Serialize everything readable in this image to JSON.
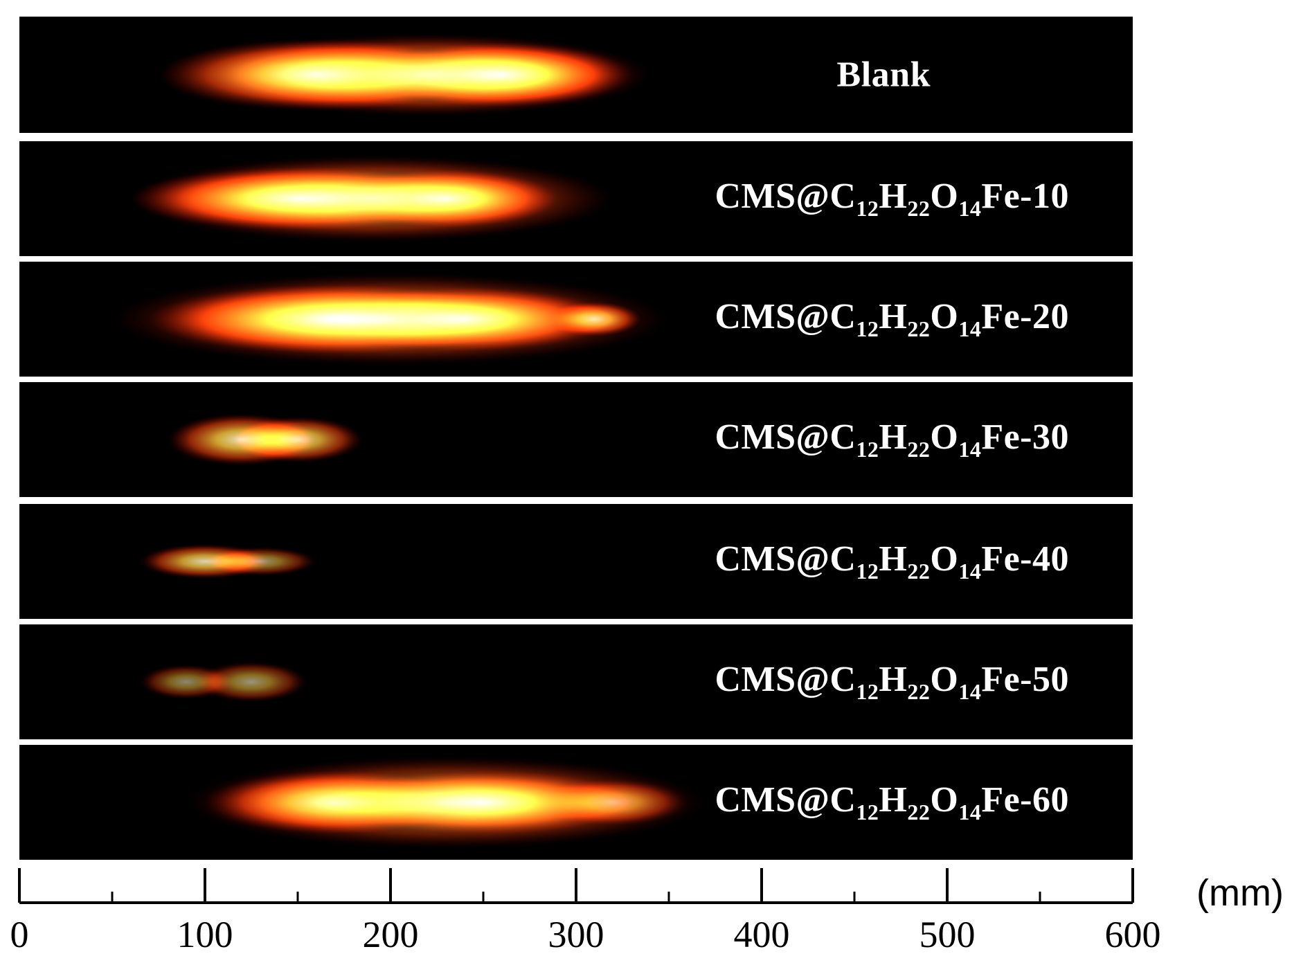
{
  "strips": [
    {
      "label": "Blank",
      "sub": null,
      "flames": [
        {
          "mm": 160,
          "spread": 85,
          "intensity": 1.0,
          "height": 0.62
        },
        {
          "mm": 260,
          "spread": 70,
          "intensity": 1.0,
          "height": 0.55
        },
        {
          "mm": 220,
          "spread": 120,
          "intensity": 0.8,
          "height": 0.7
        }
      ]
    },
    {
      "label": "CMS@C",
      "sub": [
        "12",
        "22",
        "14"
      ],
      "suffix": "Fe-10",
      "flames": [
        {
          "mm": 150,
          "spread": 90,
          "intensity": 0.95,
          "height": 0.55
        },
        {
          "mm": 230,
          "spread": 60,
          "intensity": 0.9,
          "height": 0.5
        },
        {
          "mm": 190,
          "spread": 130,
          "intensity": 0.7,
          "height": 0.75
        }
      ]
    },
    {
      "label": "CMS@C",
      "sub": [
        "12",
        "22",
        "14"
      ],
      "suffix": "Fe-20",
      "flames": [
        {
          "mm": 170,
          "spread": 100,
          "intensity": 1.0,
          "height": 0.6
        },
        {
          "mm": 240,
          "spread": 80,
          "intensity": 0.9,
          "height": 0.55
        },
        {
          "mm": 310,
          "spread": 25,
          "intensity": 0.85,
          "height": 0.3
        },
        {
          "mm": 200,
          "spread": 150,
          "intensity": 0.6,
          "height": 0.8
        }
      ]
    },
    {
      "label": "CMS@C",
      "sub": [
        "12",
        "22",
        "14"
      ],
      "suffix": "Fe-30",
      "flames": [
        {
          "mm": 120,
          "spread": 40,
          "intensity": 0.9,
          "height": 0.45
        },
        {
          "mm": 150,
          "spread": 35,
          "intensity": 0.85,
          "height": 0.4
        }
      ]
    },
    {
      "label": "CMS@C",
      "sub": [
        "12",
        "22",
        "14"
      ],
      "suffix": "Fe-40",
      "flames": [
        {
          "mm": 100,
          "spread": 35,
          "intensity": 0.85,
          "height": 0.3
        },
        {
          "mm": 130,
          "spread": 30,
          "intensity": 0.6,
          "height": 0.25
        }
      ]
    },
    {
      "label": "CMS@C",
      "sub": [
        "12",
        "22",
        "14"
      ],
      "suffix": "Fe-50",
      "flames": [
        {
          "mm": 90,
          "spread": 25,
          "intensity": 0.55,
          "height": 0.3
        },
        {
          "mm": 125,
          "spread": 30,
          "intensity": 0.6,
          "height": 0.35
        }
      ]
    },
    {
      "label": "CMS@C",
      "sub": [
        "12",
        "22",
        "14"
      ],
      "suffix": "Fe-60",
      "flames": [
        {
          "mm": 170,
          "spread": 70,
          "intensity": 0.85,
          "height": 0.55
        },
        {
          "mm": 250,
          "spread": 80,
          "intensity": 0.8,
          "height": 0.55
        },
        {
          "mm": 320,
          "spread": 40,
          "intensity": 0.6,
          "height": 0.4
        },
        {
          "mm": 230,
          "spread": 140,
          "intensity": 0.6,
          "height": 0.8
        }
      ]
    }
  ],
  "element_parts": [
    "C",
    "H",
    "O"
  ],
  "axis": {
    "min": 0,
    "max": 600,
    "major_ticks": [
      0,
      100,
      200,
      300,
      400,
      500,
      600
    ],
    "major_labels": [
      "0",
      "100",
      "200",
      "300",
      "400",
      "500",
      "600"
    ],
    "minor_ticks": [
      50,
      150,
      250,
      350,
      450,
      550
    ],
    "unit": "(mm)"
  }
}
